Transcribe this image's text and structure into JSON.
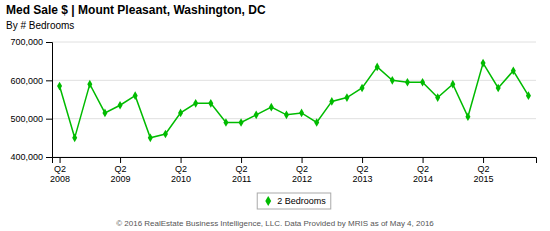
{
  "chart_data": {
    "type": "line",
    "title": "Med Sale $ | Mount Pleasant, Washington, DC",
    "subtitle": "By # Bedrooms",
    "annotations": [
      "© 2016 RealEstate Business Intelligence, LLC. Data Provided by MRIS as of May 4, 2016"
    ],
    "categories": [
      "Q2\n2008",
      null,
      null,
      null,
      "Q2\n2009",
      null,
      null,
      null,
      "Q2\n2010",
      null,
      null,
      null,
      "Q2\n2011",
      null,
      null,
      null,
      "Q2\n2012",
      null,
      null,
      null,
      "Q2\n2013",
      null,
      null,
      null,
      "Q2\n2014",
      null,
      null,
      null,
      "Q2\n2015",
      null,
      null,
      null
    ],
    "series": [
      {
        "name": "2 Bedrooms",
        "color": "#00bb00",
        "marker": "diamond",
        "values": [
          585000,
          450000,
          590000,
          515000,
          535000,
          560000,
          450000,
          460000,
          515000,
          540000,
          540000,
          490000,
          490000,
          510000,
          530000,
          510000,
          515000,
          490000,
          545000,
          555000,
          580000,
          635000,
          600000,
          595000,
          595000,
          555000,
          590000,
          505000,
          645000,
          580000,
          625000,
          560000
        ]
      }
    ],
    "ylim": [
      400000,
      700000
    ],
    "yticks": [
      {
        "value": 400000,
        "label": "400,000"
      },
      {
        "value": 500000,
        "label": "500,000"
      },
      {
        "value": 600000,
        "label": "600,000"
      },
      {
        "value": 700000,
        "label": "700,000"
      }
    ],
    "grid": true,
    "legend": "bottom"
  }
}
